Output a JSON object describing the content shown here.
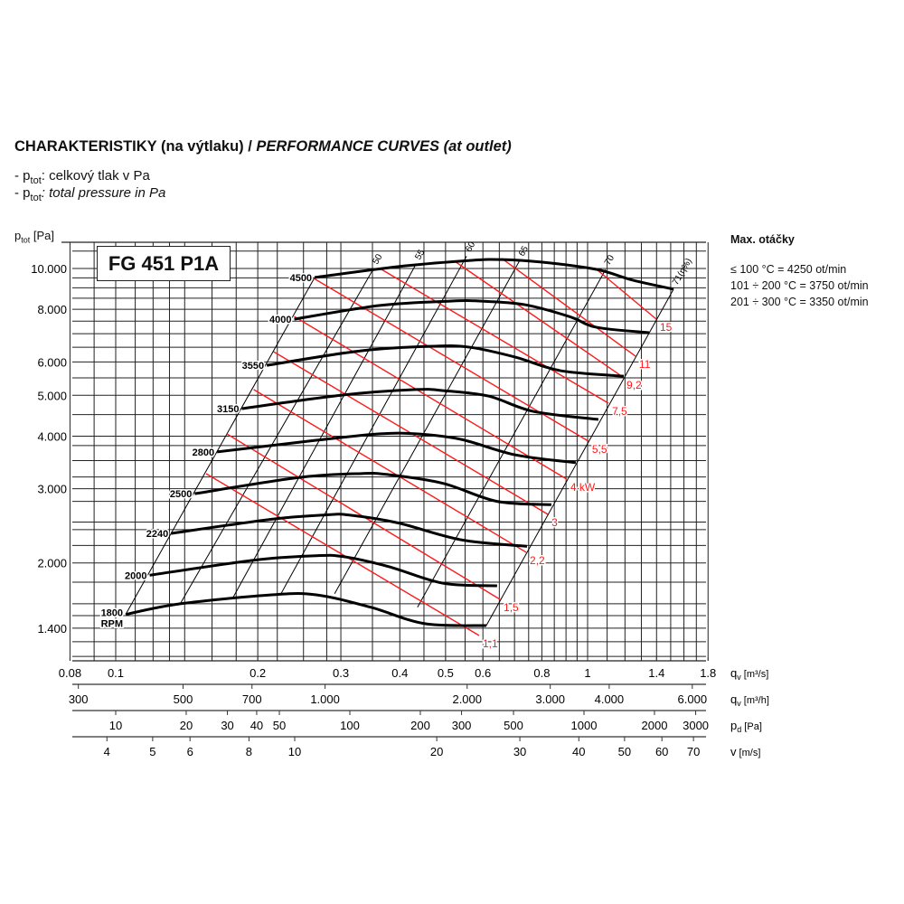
{
  "header": {
    "title_cz": "CHARAKTERISTIKY (na výtlaku) / ",
    "title_en": "PERFORMANCE CURVES (at outlet)",
    "legend_prefix": "- p",
    "legend_sub": "tot",
    "legend_cz": ": celkový tlak v Pa",
    "legend_en": ": total pressure in Pa"
  },
  "side": {
    "heading": "Max. otáčky",
    "lines": [
      "≤ 100 °C = 4250 ot/min",
      "101 ÷ 200 °C = 3750 ot/min",
      "201 ÷ 300 °C = 3350 ot/min"
    ]
  },
  "colors": {
    "grid": "#222222",
    "curve": "#000000",
    "power": "#ff1a1a"
  },
  "chart_data": {
    "type": "line",
    "title": "FG 451 P1A",
    "ylabel_main": "p",
    "ylabel_sub": "tot",
    "ylabel_unit": " [Pa]",
    "xscale": "log",
    "yscale": "log",
    "xlim": [
      0.077,
      1.8
    ],
    "ylim": [
      1180,
      11500
    ],
    "yticks": [
      {
        "v": 10000,
        "label": "10.000"
      },
      {
        "v": 8000,
        "label": "8.000"
      },
      {
        "v": 6000,
        "label": "6.000"
      },
      {
        "v": 5000,
        "label": "5.000"
      },
      {
        "v": 4000,
        "label": "4.000"
      },
      {
        "v": 3000,
        "label": "3.000"
      },
      {
        "v": 2000,
        "label": "2.000"
      },
      {
        "v": 1400,
        "label": "1.400"
      }
    ],
    "x_axes": [
      {
        "name": "qv",
        "unit_main": "q",
        "unit_sub": "v",
        "unit": " [m³/s]",
        "ticks": [
          {
            "v": 0.08,
            "label": "0.08"
          },
          {
            "v": 0.1,
            "label": "0.1"
          },
          {
            "v": 0.2,
            "label": "0.2"
          },
          {
            "v": 0.3,
            "label": "0.3"
          },
          {
            "v": 0.4,
            "label": "0.4"
          },
          {
            "v": 0.5,
            "label": "0.5"
          },
          {
            "v": 0.6,
            "label": "0.6"
          },
          {
            "v": 0.8,
            "label": "0.8"
          },
          {
            "v": 1,
            "label": "1"
          },
          {
            "v": 1.4,
            "label": "1.4"
          },
          {
            "v": 1.8,
            "label": "1.8"
          }
        ]
      },
      {
        "name": "qv_h",
        "unit_main": "q",
        "unit_sub": "v",
        "unit": " [m³/h]",
        "ticks": [
          {
            "v": 300,
            "label": "300"
          },
          {
            "v": 500,
            "label": "500"
          },
          {
            "v": 700,
            "label": "700"
          },
          {
            "v": 1000,
            "label": "1.000"
          },
          {
            "v": 2000,
            "label": "2.000"
          },
          {
            "v": 3000,
            "label": "3.000"
          },
          {
            "v": 4000,
            "label": "4.000"
          },
          {
            "v": 6000,
            "label": "6.000"
          }
        ]
      },
      {
        "name": "pd",
        "unit_main": "p",
        "unit_sub": "d",
        "unit": " [Pa]",
        "ticks": [
          {
            "v": 10,
            "label": "10"
          },
          {
            "v": 20,
            "label": "20"
          },
          {
            "v": 30,
            "label": "30"
          },
          {
            "v": 40,
            "label": "40"
          },
          {
            "v": 50,
            "label": "50"
          },
          {
            "v": 100,
            "label": "100"
          },
          {
            "v": 200,
            "label": "200"
          },
          {
            "v": 300,
            "label": "300"
          },
          {
            "v": 500,
            "label": "500"
          },
          {
            "v": 1000,
            "label": "1000"
          },
          {
            "v": 2000,
            "label": "2000"
          },
          {
            "v": 3000,
            "label": "3000"
          }
        ]
      },
      {
        "name": "v",
        "unit_main": "v",
        "unit_sub": "",
        "unit": " [m/s]",
        "ticks": [
          {
            "v": 4,
            "label": "4"
          },
          {
            "v": 5,
            "label": "5"
          },
          {
            "v": 6,
            "label": "6"
          },
          {
            "v": 8,
            "label": "8"
          },
          {
            "v": 10,
            "label": "10"
          },
          {
            "v": 20,
            "label": "20"
          },
          {
            "v": 30,
            "label": "30"
          },
          {
            "v": 40,
            "label": "40"
          },
          {
            "v": 50,
            "label": "50"
          },
          {
            "v": 60,
            "label": "60"
          },
          {
            "v": 70,
            "label": "70"
          }
        ]
      }
    ],
    "rpm_series": [
      {
        "name": "4500",
        "points": [
          [
            0.264,
            9520
          ],
          [
            0.396,
            10100
          ],
          [
            0.564,
            10450
          ],
          [
            0.658,
            10500
          ],
          [
            0.802,
            10350
          ],
          [
            1.045,
            9950
          ],
          [
            1.247,
            9380
          ],
          [
            1.521,
            8930
          ]
        ]
      },
      {
        "name": "4000",
        "points": [
          [
            0.239,
            7580
          ],
          [
            0.363,
            8170
          ],
          [
            0.516,
            8370
          ],
          [
            0.589,
            8370
          ],
          [
            0.734,
            8210
          ],
          [
            0.915,
            7690
          ],
          [
            1.045,
            7250
          ],
          [
            1.35,
            7040
          ]
        ]
      },
      {
        "name": "3550",
        "points": [
          [
            0.209,
            5890
          ],
          [
            0.332,
            6380
          ],
          [
            0.473,
            6540
          ],
          [
            0.564,
            6500
          ],
          [
            0.703,
            6160
          ],
          [
            0.876,
            5720
          ],
          [
            1.193,
            5550
          ]
        ]
      },
      {
        "name": "3150",
        "points": [
          [
            0.185,
            4650
          ],
          [
            0.304,
            5010
          ],
          [
            0.433,
            5160
          ],
          [
            0.494,
            5130
          ],
          [
            0.616,
            4980
          ],
          [
            0.767,
            4580
          ],
          [
            1.054,
            4380
          ]
        ]
      },
      {
        "name": "2800",
        "points": [
          [
            0.164,
            3670
          ],
          [
            0.266,
            3910
          ],
          [
            0.363,
            4050
          ],
          [
            0.433,
            4050
          ],
          [
            0.539,
            3930
          ],
          [
            0.703,
            3610
          ],
          [
            0.944,
            3460
          ]
        ]
      },
      {
        "name": "2500",
        "points": [
          [
            0.147,
            2920
          ],
          [
            0.244,
            3190
          ],
          [
            0.332,
            3260
          ],
          [
            0.379,
            3240
          ],
          [
            0.494,
            3090
          ],
          [
            0.643,
            2800
          ],
          [
            0.838,
            2750
          ]
        ]
      },
      {
        "name": "2240",
        "points": [
          [
            0.131,
            2350
          ],
          [
            0.214,
            2540
          ],
          [
            0.278,
            2600
          ],
          [
            0.311,
            2600
          ],
          [
            0.396,
            2490
          ],
          [
            0.539,
            2270
          ],
          [
            0.744,
            2190
          ]
        ]
      },
      {
        "name": "2000",
        "points": [
          [
            0.118,
            1870
          ],
          [
            0.196,
            2030
          ],
          [
            0.266,
            2080
          ],
          [
            0.304,
            2070
          ],
          [
            0.379,
            1960
          ],
          [
            0.494,
            1790
          ],
          [
            0.643,
            1765
          ]
        ]
      },
      {
        "name": "1800",
        "unit": "RPM",
        "points": [
          [
            0.105,
            1510
          ],
          [
            0.137,
            1600
          ],
          [
            0.214,
            1680
          ],
          [
            0.266,
            1680
          ],
          [
            0.347,
            1570
          ],
          [
            0.452,
            1435
          ],
          [
            0.61,
            1420
          ]
        ]
      }
    ],
    "efficiency_lines": [
      {
        "label": "50",
        "points": [
          [
            0.352,
            10000
          ],
          [
            0.137,
            1600
          ]
        ]
      },
      {
        "label": "55",
        "points": [
          [
            0.433,
            10250
          ],
          [
            0.177,
            1650
          ]
        ]
      },
      {
        "label": "60",
        "points": [
          [
            0.554,
            10700
          ],
          [
            0.224,
            1690
          ]
        ]
      },
      {
        "label": "65",
        "points": [
          [
            0.718,
            10450
          ],
          [
            0.291,
            1690
          ]
        ]
      },
      {
        "label": "70",
        "points": [
          [
            1.092,
            9950
          ],
          [
            0.436,
            1570
          ]
        ]
      },
      {
        "label": "71(η%)",
        "points": [
          [
            1.521,
            8930
          ],
          [
            0.61,
            1420
          ]
        ]
      }
    ],
    "left_boundary": [
      [
        0.264,
        9520
      ],
      [
        0.105,
        1510
      ]
    ],
    "power_lines": [
      {
        "label": "1,1",
        "points": [
          [
            0.1555,
            3257
          ],
          [
            0.589,
            1345
          ]
        ]
      },
      {
        "label": "1,5",
        "points": [
          [
            0.172,
            4050
          ],
          [
            0.652,
            1639
          ]
        ]
      },
      {
        "label": "2,2",
        "points": [
          [
            0.196,
            5160
          ],
          [
            0.741,
            2120
          ]
        ]
      },
      {
        "label": "3",
        "points": [
          [
            0.216,
            6347
          ],
          [
            0.824,
            2608
          ]
        ]
      },
      {
        "label": "4 kW",
        "points": [
          [
            0.239,
            7690
          ],
          [
            0.903,
            3162
          ]
        ]
      },
      {
        "label": "5,5",
        "points": [
          [
            0.263,
            9471
          ],
          [
            1.004,
            3892
          ]
        ]
      },
      {
        "label": "7,5",
        "points": [
          [
            0.363,
            10000
          ],
          [
            1.107,
            4789
          ]
        ]
      },
      {
        "label": "9,2",
        "points": [
          [
            0.523,
            10400
          ],
          [
            1.188,
            5526
          ]
        ]
      },
      {
        "label": "11",
        "points": [
          [
            0.658,
            10560
          ],
          [
            1.263,
            6193
          ]
        ]
      },
      {
        "label": "15",
        "points": [
          [
            1.045,
            9950
          ],
          [
            1.398,
            7583
          ]
        ]
      }
    ]
  }
}
